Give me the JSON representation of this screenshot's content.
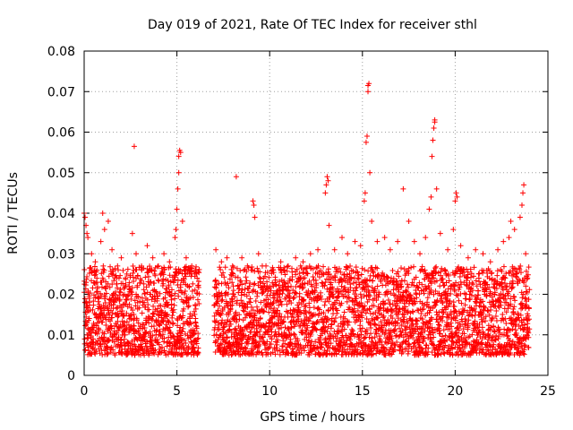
{
  "chart_data": {
    "type": "scatter",
    "title": "Day 019 of 2021, Rate Of TEC Index for receiver sthl",
    "xlabel": "GPS time / hours",
    "ylabel": "ROTI / TECUs",
    "xlim": [
      0,
      25
    ],
    "ylim": [
      0,
      0.08
    ],
    "grid": true,
    "marker": "+",
    "series_color": "#ff0000",
    "x_ticks": [
      0,
      5,
      10,
      15,
      20,
      25
    ],
    "x_tick_labels": [
      "0",
      "5",
      "10",
      "15",
      "20",
      "25"
    ],
    "y_ticks": [
      0,
      0.01,
      0.02,
      0.03,
      0.04,
      0.05,
      0.06,
      0.07,
      0.08
    ],
    "y_tick_labels": [
      "0",
      "0.01",
      "0.02",
      "0.03",
      "0.04",
      "0.05",
      "0.06",
      "0.07",
      "0.08"
    ],
    "series": [
      {
        "name": "ROTI",
        "points": [
          [
            0.0,
            0.04
          ],
          [
            0.05,
            0.039
          ],
          [
            0.1,
            0.037
          ],
          [
            0.15,
            0.035
          ],
          [
            0.2,
            0.034
          ],
          [
            0.4,
            0.03
          ],
          [
            0.6,
            0.028
          ],
          [
            0.9,
            0.033
          ],
          [
            1.0,
            0.04
          ],
          [
            1.1,
            0.036
          ],
          [
            1.3,
            0.038
          ],
          [
            1.5,
            0.031
          ],
          [
            1.8,
            0.027
          ],
          [
            2.0,
            0.029
          ],
          [
            2.3,
            0.025
          ],
          [
            2.6,
            0.035
          ],
          [
            2.7,
            0.0565
          ],
          [
            2.8,
            0.03
          ],
          [
            3.1,
            0.026
          ],
          [
            3.4,
            0.032
          ],
          [
            3.7,
            0.029
          ],
          [
            4.0,
            0.027
          ],
          [
            4.3,
            0.03
          ],
          [
            4.6,
            0.028
          ],
          [
            4.9,
            0.034
          ],
          [
            4.95,
            0.036
          ],
          [
            5.0,
            0.041
          ],
          [
            5.05,
            0.046
          ],
          [
            5.1,
            0.05
          ],
          [
            5.1,
            0.054
          ],
          [
            5.15,
            0.0555
          ],
          [
            5.2,
            0.055
          ],
          [
            5.3,
            0.038
          ],
          [
            5.5,
            0.029
          ],
          [
            5.8,
            0.027
          ],
          [
            6.0,
            0.026
          ],
          [
            7.1,
            0.031
          ],
          [
            7.4,
            0.028
          ],
          [
            7.7,
            0.029
          ],
          [
            8.0,
            0.027
          ],
          [
            8.2,
            0.049
          ],
          [
            8.5,
            0.029
          ],
          [
            8.8,
            0.027
          ],
          [
            9.1,
            0.043
          ],
          [
            9.15,
            0.042
          ],
          [
            9.2,
            0.039
          ],
          [
            9.4,
            0.03
          ],
          [
            9.8,
            0.027
          ],
          [
            10.2,
            0.026
          ],
          [
            10.6,
            0.028
          ],
          [
            11.0,
            0.027
          ],
          [
            11.4,
            0.029
          ],
          [
            11.8,
            0.028
          ],
          [
            12.2,
            0.03
          ],
          [
            12.6,
            0.031
          ],
          [
            13.0,
            0.045
          ],
          [
            13.05,
            0.047
          ],
          [
            13.1,
            0.049
          ],
          [
            13.15,
            0.048
          ],
          [
            13.2,
            0.037
          ],
          [
            13.5,
            0.031
          ],
          [
            13.9,
            0.034
          ],
          [
            14.2,
            0.03
          ],
          [
            14.6,
            0.033
          ],
          [
            14.9,
            0.032
          ],
          [
            15.1,
            0.043
          ],
          [
            15.15,
            0.045
          ],
          [
            15.2,
            0.0575
          ],
          [
            15.25,
            0.059
          ],
          [
            15.3,
            0.07
          ],
          [
            15.3,
            0.0715
          ],
          [
            15.35,
            0.072
          ],
          [
            15.4,
            0.05
          ],
          [
            15.5,
            0.038
          ],
          [
            15.8,
            0.033
          ],
          [
            16.2,
            0.034
          ],
          [
            16.5,
            0.031
          ],
          [
            16.9,
            0.033
          ],
          [
            17.2,
            0.046
          ],
          [
            17.5,
            0.038
          ],
          [
            17.8,
            0.033
          ],
          [
            18.1,
            0.03
          ],
          [
            18.4,
            0.034
          ],
          [
            18.6,
            0.041
          ],
          [
            18.7,
            0.044
          ],
          [
            18.75,
            0.054
          ],
          [
            18.8,
            0.058
          ],
          [
            18.85,
            0.061
          ],
          [
            18.9,
            0.063
          ],
          [
            18.9,
            0.0625
          ],
          [
            19.0,
            0.046
          ],
          [
            19.2,
            0.035
          ],
          [
            19.6,
            0.031
          ],
          [
            19.9,
            0.036
          ],
          [
            20.0,
            0.043
          ],
          [
            20.05,
            0.045
          ],
          [
            20.1,
            0.044
          ],
          [
            20.3,
            0.032
          ],
          [
            20.7,
            0.029
          ],
          [
            21.1,
            0.031
          ],
          [
            21.5,
            0.03
          ],
          [
            21.9,
            0.028
          ],
          [
            22.3,
            0.031
          ],
          [
            22.6,
            0.033
          ],
          [
            22.9,
            0.034
          ],
          [
            23.0,
            0.038
          ],
          [
            23.2,
            0.036
          ],
          [
            23.5,
            0.039
          ],
          [
            23.6,
            0.042
          ],
          [
            23.65,
            0.045
          ],
          [
            23.7,
            0.047
          ],
          [
            23.8,
            0.03
          ],
          [
            23.9,
            0.024
          ]
        ],
        "dense_band": {
          "description_hours_ranges": [
            [
              0.0,
              6.2
            ],
            [
              7.0,
              24.0
            ]
          ],
          "typical_min": 0.001,
          "typical_max": 0.027
        }
      }
    ]
  }
}
